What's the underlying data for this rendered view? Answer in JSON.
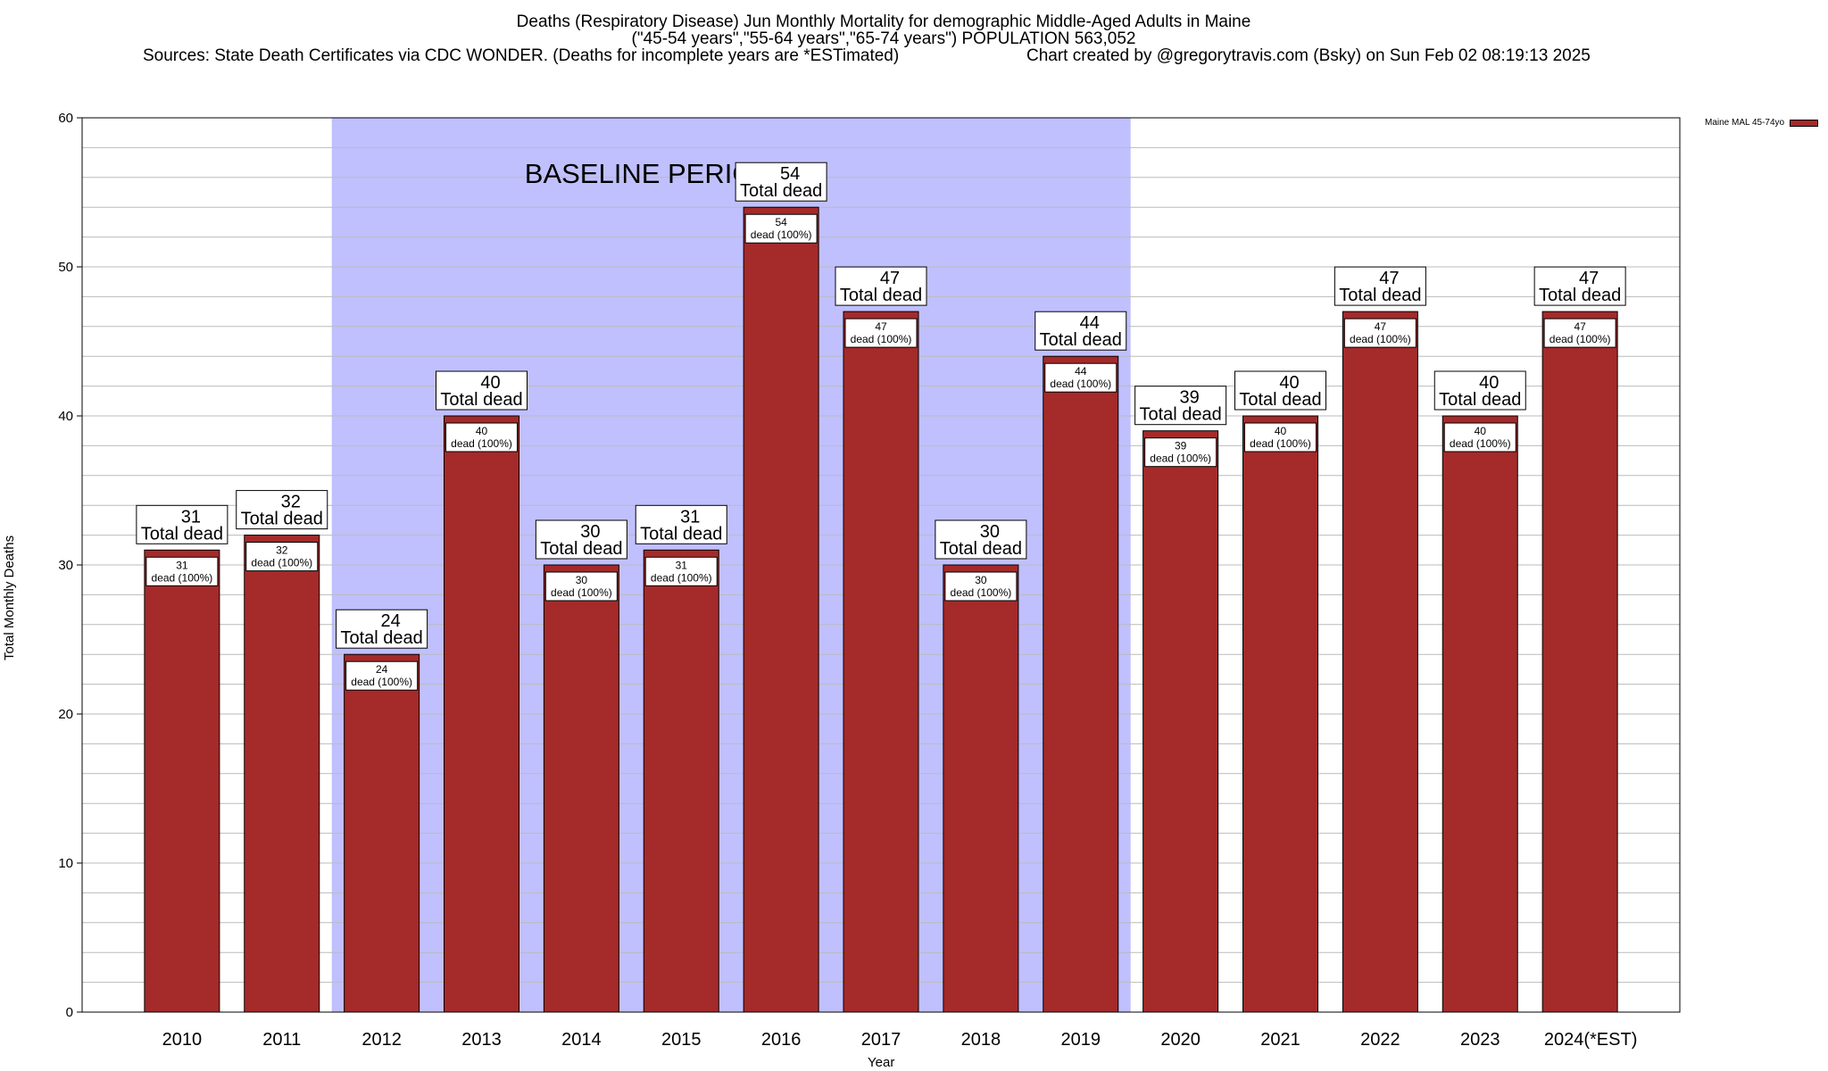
{
  "header": {
    "title_line1": "Deaths (Respiratory Disease) Jun Monthly Mortality for demographic Middle-Aged Adults in Maine",
    "title_line2": "(\"45-54 years\",\"55-64 years\",\"65-74 years\") POPULATION 563,052",
    "sources": "Sources: State Death Certificates via CDC WONDER. (Deaths for incomplete years are *ESTimated)",
    "credit": "Chart created by @gregorytravis.com (Bsky) on Sun Feb 02 08:19:13 2025"
  },
  "chart_data": {
    "type": "bar",
    "xlabel": "Year",
    "ylabel": "Total Monthly Deaths",
    "ylim": [
      0,
      60
    ],
    "yticks": [
      0,
      10,
      20,
      30,
      40,
      50,
      60
    ],
    "grid": true,
    "categories": [
      "2010",
      "2011",
      "2012",
      "2013",
      "2014",
      "2015",
      "2016",
      "2017",
      "2018",
      "2019",
      "2020",
      "2021",
      "2022",
      "2023",
      "2024(*EST)"
    ],
    "series": [
      {
        "name": "Maine MAL 45-74yo",
        "color": "#a52a2a",
        "values": [
          31,
          32,
          24,
          40,
          30,
          31,
          54,
          47,
          30,
          44,
          39,
          40,
          47,
          40,
          47
        ]
      }
    ],
    "bar_label_total_text": "Total dead",
    "bar_label_inner_text": "dead (100%)",
    "baseline": {
      "label": "BASELINE PERIOD",
      "start": "2012",
      "end": "2019",
      "color": "#c0c0ff"
    },
    "legend_position": "top-right"
  }
}
